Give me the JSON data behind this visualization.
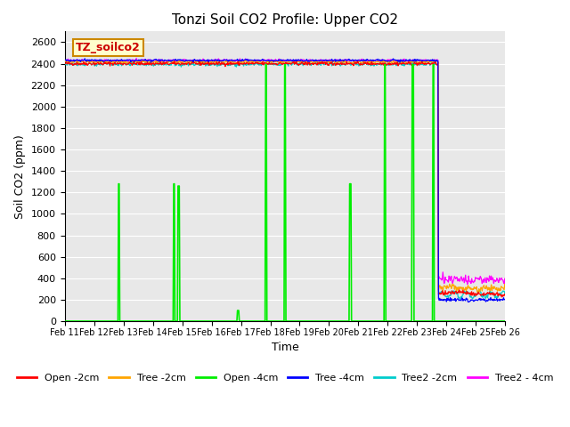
{
  "title": "Tonzi Soil CO2 Profile: Upper CO2",
  "xlabel": "Time",
  "ylabel": "Soil CO2 (ppm)",
  "ylim": [
    0,
    2700
  ],
  "yticks": [
    0,
    200,
    400,
    600,
    800,
    1000,
    1200,
    1400,
    1600,
    1800,
    2000,
    2200,
    2400,
    2600
  ],
  "date_start": 11,
  "date_end": 26,
  "legend_label": "TZ_soilco2",
  "series_colors": {
    "Open -2cm": "#ff0000",
    "Tree -2cm": "#ffa500",
    "Open -4cm": "#00ee00",
    "Tree -4cm": "#0000ff",
    "Tree2 -2cm": "#00cccc",
    "Tree2 - 4cm": "#ff00ff"
  },
  "background_color": "#e8e8e8",
  "grid_color": "#ffffff",
  "figsize": [
    6.4,
    4.8
  ],
  "dpi": 100
}
